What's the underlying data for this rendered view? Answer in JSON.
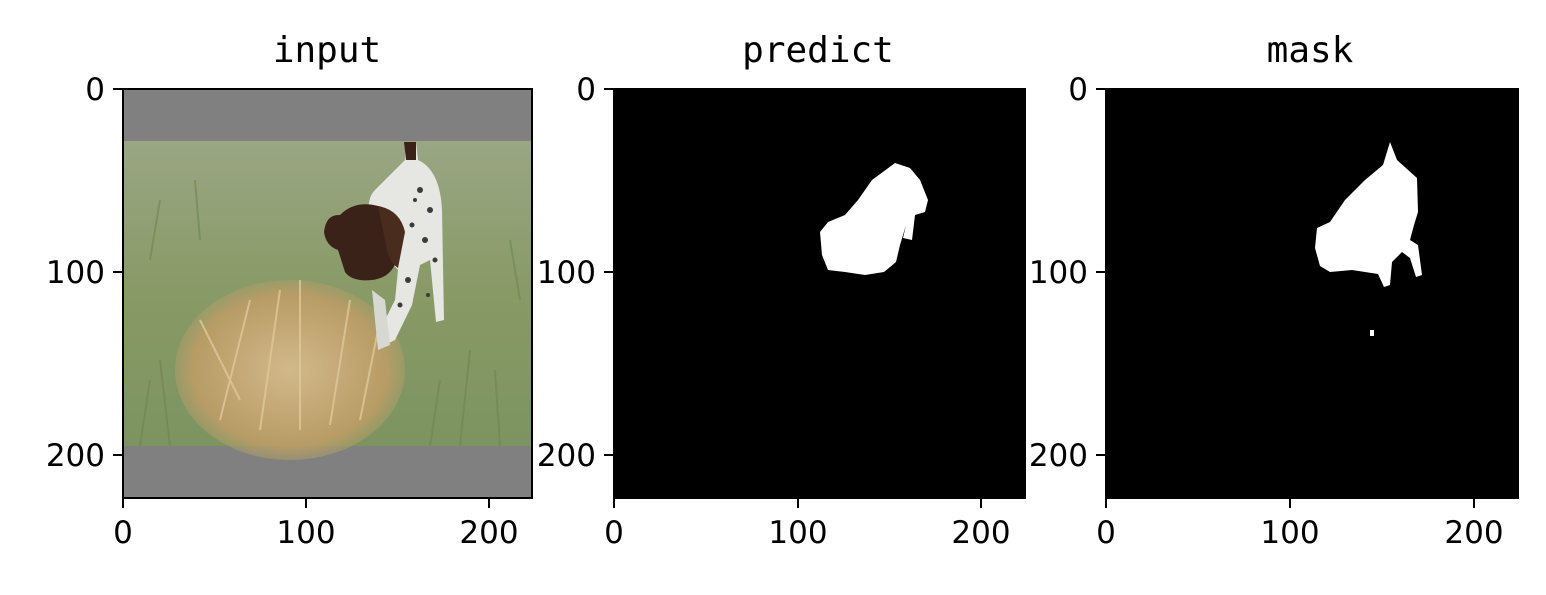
{
  "figure": {
    "panels": [
      {
        "title": "input",
        "x_ticks": [
          "0",
          "100",
          "200"
        ],
        "y_ticks": [
          "0",
          "100",
          "200"
        ],
        "content": "photo"
      },
      {
        "title": "predict",
        "x_ticks": [
          "0",
          "100",
          "200"
        ],
        "y_ticks": [
          "0",
          "100",
          "200"
        ],
        "content": "prediction-mask"
      },
      {
        "title": "mask",
        "x_ticks": [
          "0",
          "100",
          "200"
        ],
        "y_ticks": [
          "0",
          "100",
          "200"
        ],
        "content": "ground-truth-mask"
      }
    ],
    "axis_range": [
      0,
      224
    ],
    "tick_values": [
      0,
      100,
      200
    ],
    "colors": {
      "letterbox_gray": "#808080",
      "grass_green": "#8a9a6a",
      "dry_grass": "#c9b07a",
      "dog_brown": "#3a2218",
      "dog_white": "#e8e8e4",
      "mask_black": "#000000",
      "mask_white": "#ffffff"
    }
  }
}
